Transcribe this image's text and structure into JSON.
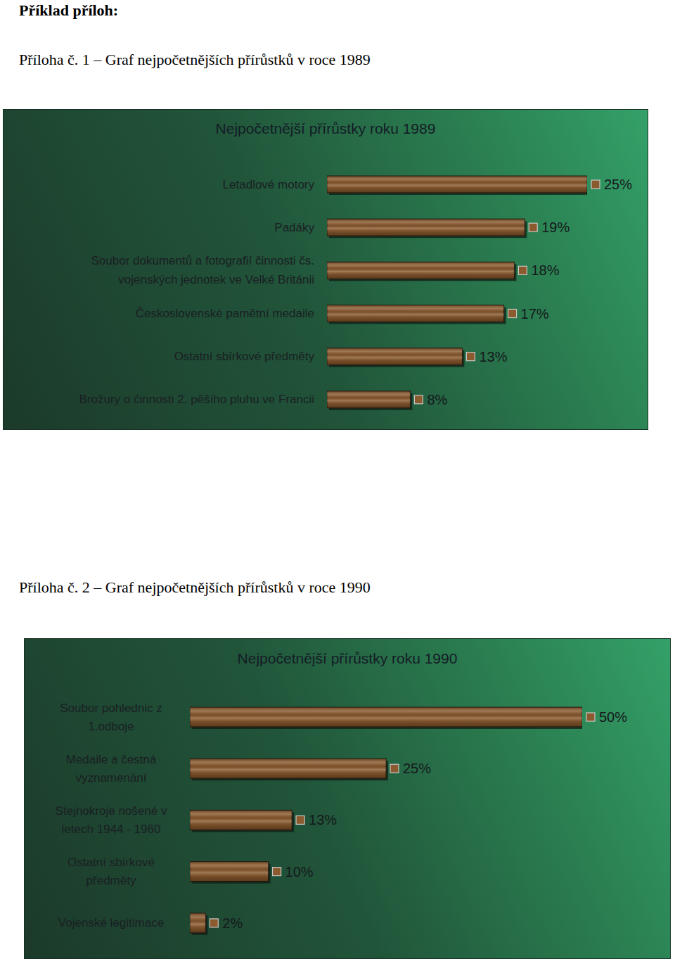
{
  "document": {
    "heading": "Příklad příloh:",
    "captions": [
      "Příloha č. 1 – Graf nejpočetnějších přírůstků v roce 1989",
      "Příloha č. 2 – Graf nejpočetnějších přírůstků v roce 1990"
    ]
  },
  "chart_data": [
    {
      "type": "bar",
      "orientation": "horizontal",
      "title": "Nejpočetnější přírůstky roku 1989",
      "categories": [
        "Letadlové motory",
        "Padáky",
        "Soubor dokumentů a fotografií činnosti čs. vojenských jednotek ve Velké Británii",
        "Československé pamětní medaile",
        "Ostatní sbírkové předměty",
        "Brožury o činnosti 2. pěšího pluhu ve Francii"
      ],
      "values": [
        25,
        19,
        18,
        17,
        13,
        8
      ],
      "value_labels": [
        "25%",
        "19%",
        "18%",
        "17%",
        "13%",
        "8%"
      ],
      "data_labels": true,
      "tick_labels": "y",
      "xlim": [
        0,
        25
      ],
      "color": "#8b5a2e"
    },
    {
      "type": "bar",
      "orientation": "horizontal",
      "title": "Nejpočetnější přírůstky roku 1990",
      "categories": [
        "Soubor pohlednic z 1.odboje",
        "Medaile a čestná vyznamenání",
        "Stejnokroje nošené v letech 1944 - 1960",
        "Ostatní sbírkové předměty",
        "Vojenské legitimace"
      ],
      "values": [
        50,
        25,
        13,
        10,
        2
      ],
      "value_labels": [
        "50%",
        "25%",
        "13%",
        "10%",
        "2%"
      ],
      "data_labels": true,
      "tick_labels": "y",
      "xlim": [
        0,
        50
      ],
      "color": "#8b5a2e"
    }
  ]
}
